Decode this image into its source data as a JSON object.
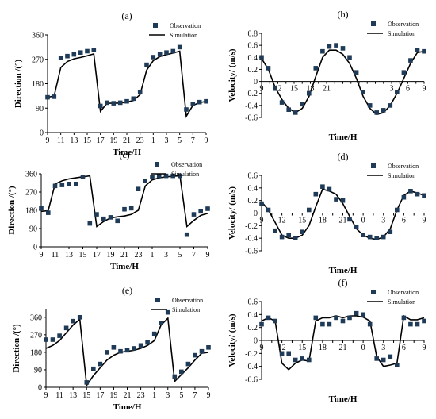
{
  "legend": {
    "observation": "Observation",
    "simulation": "Simulation"
  },
  "colors": {
    "marker": "#1f3b57",
    "line": "#000000",
    "axis": "#000000"
  },
  "chart_data": [
    {
      "id": "a",
      "panel_label": "(a)",
      "type": "scatter+line",
      "ylabel": "Direction /(°)",
      "xlabel": "Time/H",
      "xlim": [
        0,
        24
      ],
      "ylim": [
        0,
        360
      ],
      "yticks": [
        0,
        90,
        180,
        270,
        360
      ],
      "xtick_labels": [
        "9",
        "11",
        "13",
        "15",
        "17",
        "19",
        "21",
        "23",
        "1",
        "3",
        "5",
        "7",
        "9"
      ],
      "grid": false,
      "legend_position": "top-right",
      "observation": [
        [
          0,
          130
        ],
        [
          1,
          132
        ],
        [
          2,
          275
        ],
        [
          3,
          282
        ],
        [
          4,
          288
        ],
        [
          5,
          295
        ],
        [
          6,
          300
        ],
        [
          7,
          305
        ],
        [
          8,
          98
        ],
        [
          9,
          110
        ],
        [
          10,
          108
        ],
        [
          11,
          110
        ],
        [
          12,
          115
        ],
        [
          13,
          125
        ],
        [
          14,
          150
        ],
        [
          15,
          250
        ],
        [
          16,
          278
        ],
        [
          17,
          288
        ],
        [
          18,
          295
        ],
        [
          19,
          300
        ],
        [
          20,
          315
        ],
        [
          21,
          85
        ],
        [
          22,
          105
        ],
        [
          23,
          112
        ],
        [
          24,
          115
        ]
      ],
      "simulation": [
        [
          0,
          130
        ],
        [
          1,
          135
        ],
        [
          2,
          240
        ],
        [
          3,
          262
        ],
        [
          4,
          272
        ],
        [
          5,
          277
        ],
        [
          6,
          283
        ],
        [
          7,
          290
        ],
        [
          8,
          78
        ],
        [
          9,
          108
        ],
        [
          10,
          108
        ],
        [
          11,
          109
        ],
        [
          12,
          112
        ],
        [
          13,
          118
        ],
        [
          14,
          140
        ],
        [
          15,
          230
        ],
        [
          16,
          265
        ],
        [
          17,
          280
        ],
        [
          18,
          287
        ],
        [
          19,
          293
        ],
        [
          20,
          300
        ],
        [
          21,
          60
        ],
        [
          22,
          100
        ],
        [
          23,
          110
        ],
        [
          24,
          115
        ]
      ]
    },
    {
      "id": "b",
      "panel_label": "(b)",
      "type": "scatter+line",
      "ylabel": "Velocity/ (m/s)",
      "xlabel": "Time/H",
      "xlim": [
        0,
        24
      ],
      "ylim": [
        -0.6,
        0.8
      ],
      "yticks": [
        -0.6,
        -0.4,
        -0.2,
        0,
        0.2,
        0.4,
        0.6,
        0.8
      ],
      "xtick_labels": [
        "9",
        "",
        "12",
        "",
        "15",
        "",
        "18",
        "",
        "21",
        "",
        "",
        "",
        "",
        "",
        "",
        "",
        "3",
        "",
        "6",
        "",
        "9"
      ],
      "xtick_positions": [
        0,
        1.2,
        2.4,
        3.6,
        4.8,
        6,
        7.2,
        8.4,
        9.6,
        10.8,
        12,
        13.2,
        14.4,
        15.6,
        16.8,
        18,
        19.2,
        20.4,
        21.6,
        22.8,
        24
      ],
      "grid": false,
      "legend_position": "top-right",
      "observation": [
        [
          0,
          0.4
        ],
        [
          1,
          0.22
        ],
        [
          2,
          -0.12
        ],
        [
          3,
          -0.35
        ],
        [
          4,
          -0.47
        ],
        [
          5,
          -0.52
        ],
        [
          6,
          -0.38
        ],
        [
          7,
          -0.2
        ],
        [
          8,
          0.22
        ],
        [
          9,
          0.5
        ],
        [
          10,
          0.58
        ],
        [
          11,
          0.6
        ],
        [
          12,
          0.55
        ],
        [
          13,
          0.4
        ],
        [
          14,
          0.15
        ],
        [
          15,
          -0.18
        ],
        [
          16,
          -0.4
        ],
        [
          17,
          -0.52
        ],
        [
          18,
          -0.48
        ],
        [
          19,
          -0.4
        ],
        [
          20,
          -0.18
        ],
        [
          21,
          0.15
        ],
        [
          22,
          0.35
        ],
        [
          23,
          0.52
        ],
        [
          24,
          0.5
        ]
      ],
      "simulation": [
        [
          0,
          0.38
        ],
        [
          1,
          0.2
        ],
        [
          2,
          -0.1
        ],
        [
          3,
          -0.3
        ],
        [
          4,
          -0.45
        ],
        [
          5,
          -0.52
        ],
        [
          6,
          -0.45
        ],
        [
          7,
          -0.25
        ],
        [
          8,
          0.08
        ],
        [
          9,
          0.4
        ],
        [
          10,
          0.52
        ],
        [
          11,
          0.52
        ],
        [
          12,
          0.45
        ],
        [
          13,
          0.3
        ],
        [
          14,
          0.05
        ],
        [
          15,
          -0.25
        ],
        [
          16,
          -0.45
        ],
        [
          17,
          -0.55
        ],
        [
          18,
          -0.52
        ],
        [
          19,
          -0.4
        ],
        [
          20,
          -0.2
        ],
        [
          21,
          0.05
        ],
        [
          22,
          0.3
        ],
        [
          23,
          0.48
        ],
        [
          24,
          0.5
        ]
      ]
    },
    {
      "id": "c",
      "panel_label": "(c)",
      "type": "scatter+line",
      "ylabel": "Direction /(°)",
      "xlabel": "Time/H",
      "xlim": [
        0,
        24
      ],
      "ylim": [
        0,
        360
      ],
      "yticks": [
        0,
        90,
        180,
        270,
        360
      ],
      "xtick_labels": [
        "9",
        "11",
        "13",
        "15",
        "17",
        "19",
        "21",
        "23",
        "1",
        "3",
        "5",
        "7",
        "9"
      ],
      "grid": false,
      "legend_position": "top-right",
      "observation": [
        [
          0,
          190
        ],
        [
          1,
          168
        ],
        [
          2,
          300
        ],
        [
          3,
          305
        ],
        [
          4,
          310
        ],
        [
          5,
          310
        ],
        [
          6,
          345
        ],
        [
          7,
          115
        ],
        [
          8,
          160
        ],
        [
          9,
          138
        ],
        [
          10,
          145
        ],
        [
          11,
          128
        ],
        [
          12,
          185
        ],
        [
          13,
          190
        ],
        [
          14,
          285
        ],
        [
          15,
          325
        ],
        [
          16,
          345
        ],
        [
          17,
          350
        ],
        [
          18,
          350
        ],
        [
          19,
          350
        ],
        [
          20,
          350
        ],
        [
          21,
          60
        ],
        [
          22,
          160
        ],
        [
          23,
          175
        ],
        [
          24,
          188
        ]
      ],
      "simulation": [
        [
          0,
          175
        ],
        [
          1,
          178
        ],
        [
          2,
          310
        ],
        [
          3,
          325
        ],
        [
          4,
          335
        ],
        [
          5,
          340
        ],
        [
          6,
          345
        ],
        [
          7,
          350
        ],
        [
          8,
          100
        ],
        [
          9,
          125
        ],
        [
          10,
          142
        ],
        [
          11,
          148
        ],
        [
          12,
          152
        ],
        [
          13,
          160
        ],
        [
          14,
          180
        ],
        [
          15,
          300
        ],
        [
          16,
          330
        ],
        [
          17,
          340
        ],
        [
          18,
          345
        ],
        [
          19,
          348
        ],
        [
          20,
          350
        ],
        [
          21,
          100
        ],
        [
          22,
          130
        ],
        [
          23,
          155
        ],
        [
          24,
          165
        ]
      ]
    },
    {
      "id": "d",
      "panel_label": "(d)",
      "type": "scatter+line",
      "ylabel": "Velocity/ (m/s)",
      "xlabel": "Time/H",
      "xlim": [
        0,
        24
      ],
      "ylim": [
        -0.6,
        0.6
      ],
      "yticks": [
        -0.6,
        -0.4,
        -0.2,
        0,
        0.2,
        0.4,
        0.6
      ],
      "xtick_labels": [
        "9",
        "",
        "12",
        "",
        "15",
        "",
        "18",
        "",
        "21",
        "",
        "0",
        "",
        "3",
        "",
        "6",
        "",
        "9"
      ],
      "xtick_positions": [
        0,
        1.5,
        3,
        4.5,
        6,
        7.5,
        9,
        10.5,
        12,
        13.5,
        15,
        16.5,
        18,
        19.5,
        21,
        22.5,
        24
      ],
      "grid": false,
      "legend_position": "top-right",
      "observation": [
        [
          0,
          0.15
        ],
        [
          1,
          0.05
        ],
        [
          2,
          -0.28
        ],
        [
          3,
          -0.38
        ],
        [
          4,
          -0.35
        ],
        [
          5,
          -0.4
        ],
        [
          6,
          -0.3
        ],
        [
          7,
          0.05
        ],
        [
          8,
          0.3
        ],
        [
          9,
          0.42
        ],
        [
          10,
          0.38
        ],
        [
          11,
          0.22
        ],
        [
          12,
          0.2
        ],
        [
          13,
          -0.1
        ],
        [
          14,
          -0.22
        ],
        [
          15,
          -0.35
        ],
        [
          16,
          -0.38
        ],
        [
          17,
          -0.4
        ],
        [
          18,
          -0.38
        ],
        [
          19,
          -0.3
        ],
        [
          20,
          0.05
        ],
        [
          21,
          0.25
        ],
        [
          22,
          0.35
        ],
        [
          23,
          0.3
        ],
        [
          24,
          0.28
        ]
      ],
      "simulation": [
        [
          0,
          0.18
        ],
        [
          1,
          0.05
        ],
        [
          2,
          -0.15
        ],
        [
          3,
          -0.35
        ],
        [
          4,
          -0.4
        ],
        [
          5,
          -0.4
        ],
        [
          6,
          -0.35
        ],
        [
          7,
          -0.2
        ],
        [
          8,
          0.1
        ],
        [
          9,
          0.38
        ],
        [
          10,
          0.35
        ],
        [
          11,
          0.3
        ],
        [
          12,
          0.15
        ],
        [
          13,
          -0.05
        ],
        [
          14,
          -0.25
        ],
        [
          15,
          -0.35
        ],
        [
          16,
          -0.4
        ],
        [
          17,
          -0.42
        ],
        [
          18,
          -0.38
        ],
        [
          19,
          -0.25
        ],
        [
          20,
          0.05
        ],
        [
          21,
          0.28
        ],
        [
          22,
          0.35
        ],
        [
          23,
          0.32
        ],
        [
          24,
          0.28
        ]
      ]
    },
    {
      "id": "e",
      "panel_label": "(e)",
      "type": "scatter+line",
      "ylabel": "Direction /(°)",
      "xlabel": "Time/H",
      "xlim": [
        0,
        24
      ],
      "ylim": [
        0,
        400
      ],
      "yticks": [
        0,
        90,
        180,
        270,
        360
      ],
      "xtick_labels": [
        "9",
        "11",
        "13",
        "15",
        "17",
        "19",
        "21",
        "23",
        "1",
        "3",
        "5",
        "7",
        "9"
      ],
      "grid": false,
      "legend_position": "top-right",
      "observation": [
        [
          0,
          245
        ],
        [
          1,
          245
        ],
        [
          2,
          265
        ],
        [
          3,
          305
        ],
        [
          4,
          340
        ],
        [
          5,
          360
        ],
        [
          6,
          25
        ],
        [
          7,
          95
        ],
        [
          8,
          120
        ],
        [
          9,
          180
        ],
        [
          10,
          205
        ],
        [
          11,
          185
        ],
        [
          12,
          190
        ],
        [
          13,
          200
        ],
        [
          14,
          215
        ],
        [
          15,
          230
        ],
        [
          16,
          275
        ],
        [
          17,
          330
        ],
        [
          18,
          385
        ],
        [
          19,
          55
        ],
        [
          20,
          80
        ],
        [
          21,
          120
        ],
        [
          22,
          165
        ],
        [
          23,
          185
        ],
        [
          24,
          205
        ]
      ],
      "simulation": [
        [
          0,
          200
        ],
        [
          1,
          215
        ],
        [
          2,
          240
        ],
        [
          3,
          280
        ],
        [
          4,
          320
        ],
        [
          5,
          350
        ],
        [
          6,
          10
        ],
        [
          7,
          60
        ],
        [
          8,
          100
        ],
        [
          9,
          140
        ],
        [
          10,
          165
        ],
        [
          11,
          180
        ],
        [
          12,
          185
        ],
        [
          13,
          190
        ],
        [
          14,
          200
        ],
        [
          15,
          215
        ],
        [
          16,
          240
        ],
        [
          17,
          320
        ],
        [
          18,
          355
        ],
        [
          19,
          30
        ],
        [
          20,
          65
        ],
        [
          21,
          100
        ],
        [
          22,
          140
        ],
        [
          23,
          175
        ],
        [
          24,
          180
        ]
      ]
    },
    {
      "id": "f",
      "panel_label": "(f)",
      "type": "scatter+line",
      "ylabel": "Velocity/ (m/s)",
      "xlabel": "Time/H",
      "xlim": [
        0,
        24
      ],
      "ylim": [
        -0.6,
        0.6
      ],
      "yticks": [
        -0.6,
        -0.4,
        -0.2,
        0,
        0.2,
        0.4,
        0.6
      ],
      "xtick_labels": [
        "9",
        "",
        "12",
        "",
        "15",
        "",
        "18",
        "",
        "21",
        "",
        "0",
        "",
        "3",
        "",
        "6",
        "",
        "9"
      ],
      "xtick_positions": [
        0,
        1.5,
        3,
        4.5,
        6,
        7.5,
        9,
        10.5,
        12,
        13.5,
        15,
        16.5,
        18,
        19.5,
        21,
        22.5,
        24
      ],
      "grid": false,
      "legend_position": "top-right",
      "observation": [
        [
          0,
          0.25
        ],
        [
          1,
          0.35
        ],
        [
          2,
          0.3
        ],
        [
          3,
          -0.2
        ],
        [
          4,
          -0.2
        ],
        [
          5,
          -0.3
        ],
        [
          6,
          -0.28
        ],
        [
          7,
          -0.3
        ],
        [
          8,
          0.35
        ],
        [
          9,
          0.25
        ],
        [
          10,
          0.25
        ],
        [
          11,
          0.35
        ],
        [
          12,
          0.3
        ],
        [
          13,
          0.35
        ],
        [
          14,
          0.42
        ],
        [
          15,
          0.4
        ],
        [
          16,
          0.25
        ],
        [
          17,
          -0.28
        ],
        [
          18,
          -0.3
        ],
        [
          19,
          -0.25
        ],
        [
          20,
          -0.38
        ],
        [
          21,
          0.35
        ],
        [
          22,
          0.25
        ],
        [
          23,
          0.25
        ],
        [
          24,
          0.3
        ]
      ],
      "simulation": [
        [
          0,
          0.3
        ],
        [
          1,
          0.35
        ],
        [
          2,
          0.3
        ],
        [
          3,
          -0.35
        ],
        [
          4,
          -0.45
        ],
        [
          5,
          -0.35
        ],
        [
          6,
          -0.3
        ],
        [
          7,
          -0.32
        ],
        [
          8,
          0.3
        ],
        [
          9,
          0.35
        ],
        [
          10,
          0.35
        ],
        [
          11,
          0.38
        ],
        [
          12,
          0.35
        ],
        [
          13,
          0.38
        ],
        [
          14,
          0.38
        ],
        [
          15,
          0.36
        ],
        [
          16,
          0.3
        ],
        [
          17,
          -0.25
        ],
        [
          18,
          -0.4
        ],
        [
          19,
          -0.38
        ],
        [
          20,
          -0.35
        ],
        [
          21,
          0.38
        ],
        [
          22,
          0.32
        ],
        [
          23,
          0.32
        ],
        [
          24,
          0.35
        ]
      ]
    }
  ]
}
